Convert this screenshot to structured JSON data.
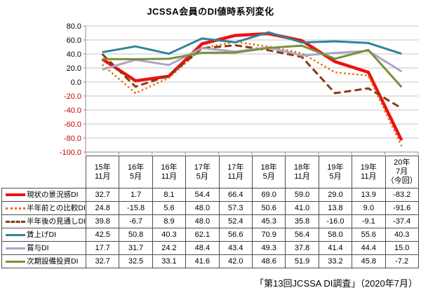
{
  "title": "JCSSA会員のDI値時系列変化",
  "caption": "「第13回JCSSA DI調査」（2020年7月）",
  "colors": {
    "gridline": "#c6c6c6",
    "axis": "#8e8e8e",
    "positive_axis_label": "#000000",
    "negative_axis_label": "#cc0000",
    "table_border": "#4d4d4d"
  },
  "chart_data": {
    "type": "line",
    "title": "JCSSA会員のDI値時系列変化",
    "categories": [
      "15年11月",
      "16年5月",
      "16年11月",
      "17年5月",
      "17年11月",
      "18年5月",
      "18年11月",
      "19年5月",
      "19年11月",
      "20年7月（今回）"
    ],
    "category_lines": [
      [
        "15年",
        "11月"
      ],
      [
        "16年",
        "5月"
      ],
      [
        "16年",
        "11月"
      ],
      [
        "17年",
        "5月"
      ],
      [
        "17年",
        "11月"
      ],
      [
        "18年",
        "5月"
      ],
      [
        "18年",
        "11月"
      ],
      [
        "19年",
        "5月"
      ],
      [
        "19年",
        "11月"
      ],
      [
        "20年",
        "7月",
        "（今回）"
      ]
    ],
    "ylim": [
      -100,
      80
    ],
    "ytick_step": 20,
    "grid": "horizontal",
    "legend_position": "table-left",
    "series": [
      {
        "name": "現状の景況感DI",
        "color": "#ee1111",
        "style": "solid-thick",
        "values": [
          32.7,
          1.7,
          8.1,
          54.4,
          66.4,
          69.0,
          59.0,
          29.0,
          13.9,
          -83.2
        ]
      },
      {
        "name": "半年前との比較DI",
        "color": "#e36c0a",
        "style": "dotted",
        "values": [
          24.8,
          -15.8,
          5.6,
          48.0,
          57.3,
          50.6,
          41.0,
          13.8,
          9.0,
          -91.6
        ]
      },
      {
        "name": "半年後の見通しDI",
        "color": "#8b3a0b",
        "style": "dashed",
        "values": [
          39.8,
          -6.7,
          8.9,
          48.0,
          52.4,
          45.3,
          35.8,
          -16.0,
          -9.1,
          -37.4
        ]
      },
      {
        "name": "賃上げDI",
        "color": "#31849b",
        "style": "solid",
        "values": [
          42.5,
          50.8,
          40.3,
          62.1,
          56.6,
          70.9,
          56.4,
          58.0,
          55.6,
          40.3
        ]
      },
      {
        "name": "賞与DI",
        "color": "#b2a2c7",
        "style": "solid",
        "values": [
          17.7,
          31.7,
          24.2,
          48.4,
          43.4,
          49.3,
          37.8,
          41.4,
          44.4,
          15.0
        ]
      },
      {
        "name": "次期設備投資DI",
        "color": "#76923c",
        "style": "solid",
        "values": [
          32.7,
          32.5,
          33.1,
          41.6,
          42.0,
          48.6,
          51.9,
          33.2,
          45.8,
          -7.2
        ]
      }
    ]
  }
}
